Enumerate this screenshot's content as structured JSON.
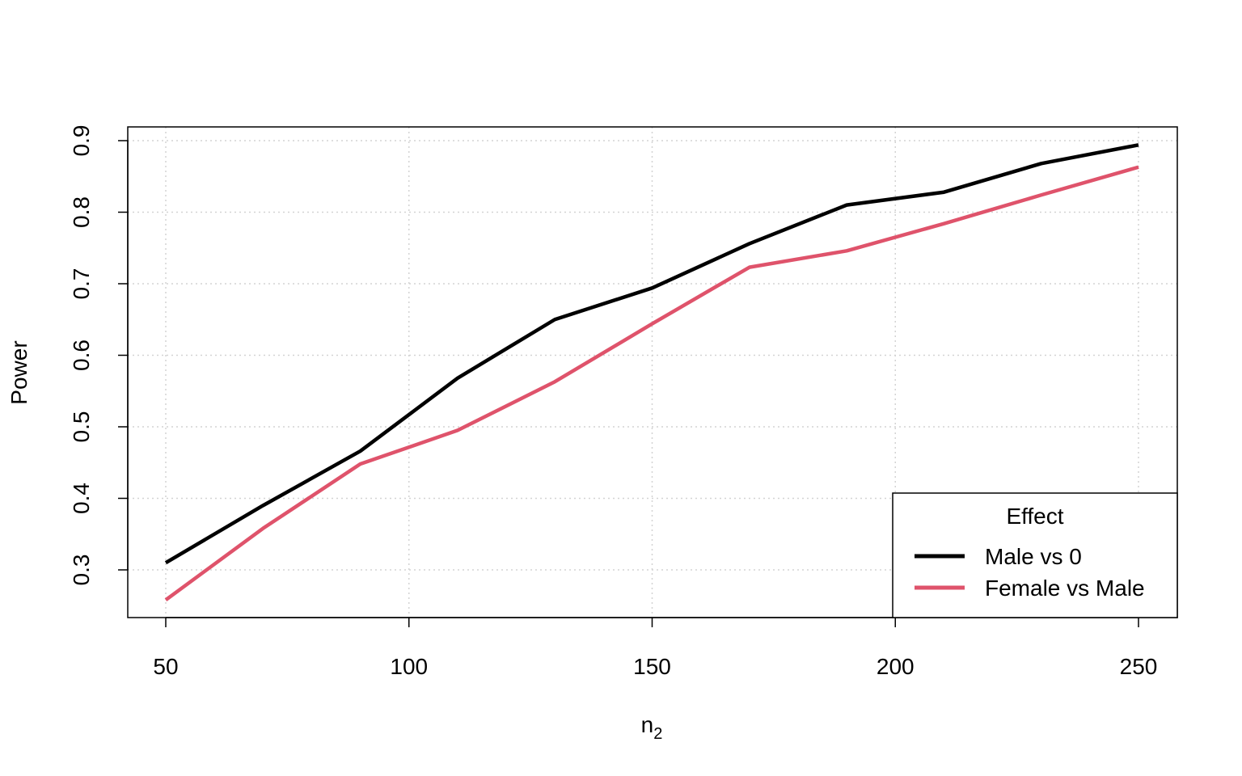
{
  "chart_data": {
    "type": "line",
    "title": "",
    "xlabel_base": "n",
    "xlabel_sub": "2",
    "ylabel": "Power",
    "xlim": [
      50,
      250
    ],
    "ylim": [
      0.26,
      0.9
    ],
    "grid": true,
    "legend_position": "bottom-right",
    "legend_title": "Effect",
    "x_ticks": [
      50,
      100,
      150,
      200,
      250
    ],
    "x_tick_labels": [
      "50",
      "100",
      "150",
      "200",
      "250"
    ],
    "y_ticks": [
      0.3,
      0.4,
      0.5,
      0.6,
      0.7,
      0.8,
      0.9
    ],
    "y_tick_labels": [
      "0.3",
      "0.4",
      "0.5",
      "0.6",
      "0.7",
      "0.8",
      "0.9"
    ],
    "x": [
      50,
      70,
      90,
      110,
      130,
      150,
      170,
      190,
      210,
      230,
      250
    ],
    "series": [
      {
        "name": "Male vs 0",
        "color": "#000000",
        "values": [
          0.31,
          0.39,
          0.466,
          0.568,
          0.65,
          0.694,
          0.756,
          0.81,
          0.828,
          0.868,
          0.894
        ]
      },
      {
        "name": "Female vs Male",
        "color": "#DF536B",
        "values": [
          0.258,
          0.358,
          0.448,
          0.495,
          0.563,
          0.644,
          0.723,
          0.746,
          0.784,
          0.824,
          0.863
        ]
      }
    ]
  }
}
